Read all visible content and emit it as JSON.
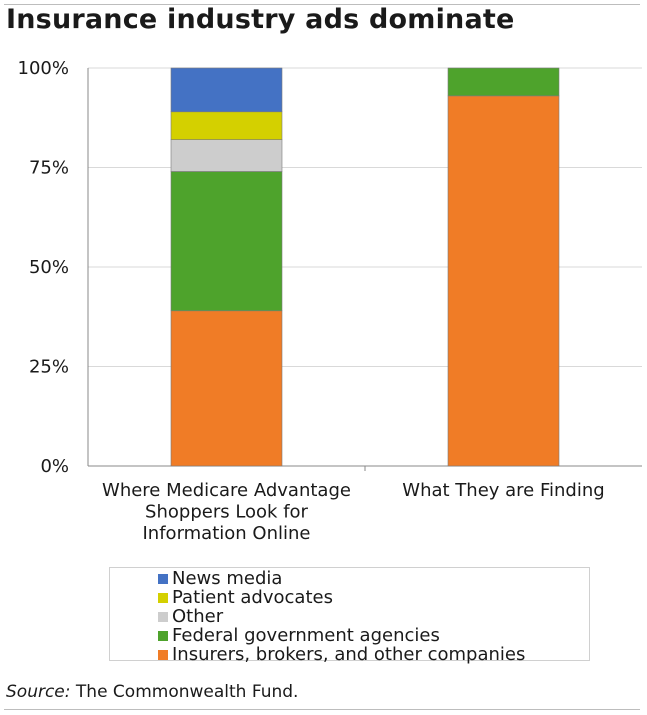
{
  "title": "Insurance industry ads dominate",
  "source": {
    "lead": "Source:",
    "text": "The Commonwealth Fund."
  },
  "colors": {
    "news_media": "#4472c4",
    "patient_advocates": "#d4d000",
    "other": "#cdcdcd",
    "federal_government_agencies": "#4ea32c",
    "insurers": "#f07c26"
  },
  "chart_data": {
    "type": "bar",
    "stacked": true,
    "categories": [
      "Where Medicare Advantage Shoppers Look for Information Online",
      "What They are Finding"
    ],
    "category_label_lines": [
      [
        "Where Medicare Advantage",
        "Shoppers Look for",
        "Information Online"
      ],
      [
        "What They are Finding"
      ]
    ],
    "series": [
      {
        "name": "Insurers, brokers, and other companies",
        "color": "#f07c26",
        "values": [
          39,
          93
        ]
      },
      {
        "name": "Federal government agencies",
        "color": "#4ea32c",
        "values": [
          35,
          7
        ]
      },
      {
        "name": "Other",
        "color": "#cdcdcd",
        "values": [
          8,
          0
        ]
      },
      {
        "name": "Patient advocates",
        "color": "#d4d000",
        "values": [
          7,
          0
        ]
      },
      {
        "name": "News media",
        "color": "#4472c4",
        "values": [
          11,
          0
        ]
      }
    ],
    "yticks": [
      "0%",
      "25%",
      "50%",
      "75%",
      "100%"
    ],
    "ylim": [
      0,
      100
    ],
    "grid": true,
    "legend_position": "bottom"
  }
}
